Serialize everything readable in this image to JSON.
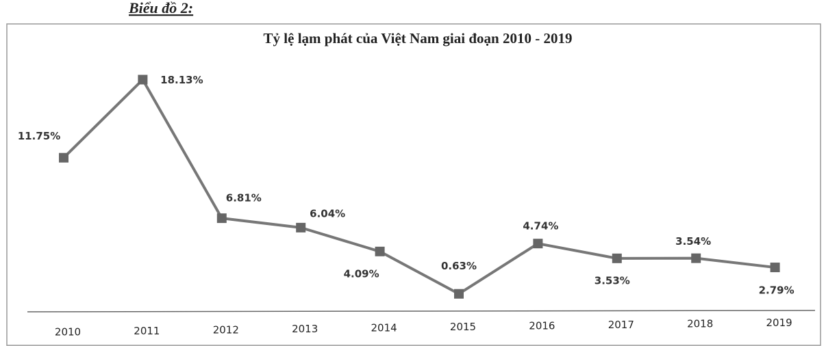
{
  "caption": "Biểu đồ 2:",
  "chart_data": {
    "type": "line",
    "title": "Tỷ lệ lạm phát của Việt Nam giai đoạn 2010 - 2019",
    "categories": [
      "2010",
      "2011",
      "2012",
      "2013",
      "2014",
      "2015",
      "2016",
      "2017",
      "2018",
      "2019"
    ],
    "values": [
      11.75,
      18.13,
      6.81,
      6.04,
      4.09,
      0.63,
      4.74,
      3.53,
      3.54,
      2.79
    ],
    "value_labels": [
      "11.75%",
      "18.13%",
      "6.81%",
      "6.04%",
      "4.09%",
      "0.63%",
      "4.74%",
      "3.53%",
      "3.54%",
      "2.79%"
    ],
    "color": "#777777"
  }
}
